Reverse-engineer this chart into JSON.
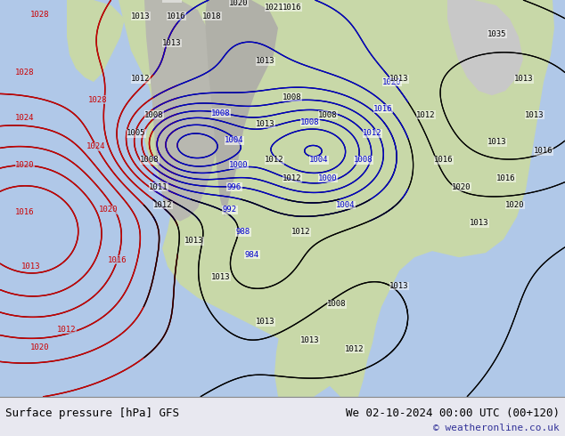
{
  "title_left": "Surface pressure [hPa] GFS",
  "title_right": "We 02-10-2024 00:00 UTC (00+120)",
  "copyright": "© weatheronline.co.uk",
  "bg_color": "#e8e8f0",
  "map_bg": "#b0c8e8",
  "land_color": "#c8d8a8",
  "mountain_color": "#b8b8b0",
  "fig_width": 6.34,
  "fig_height": 4.9,
  "dpi": 100
}
